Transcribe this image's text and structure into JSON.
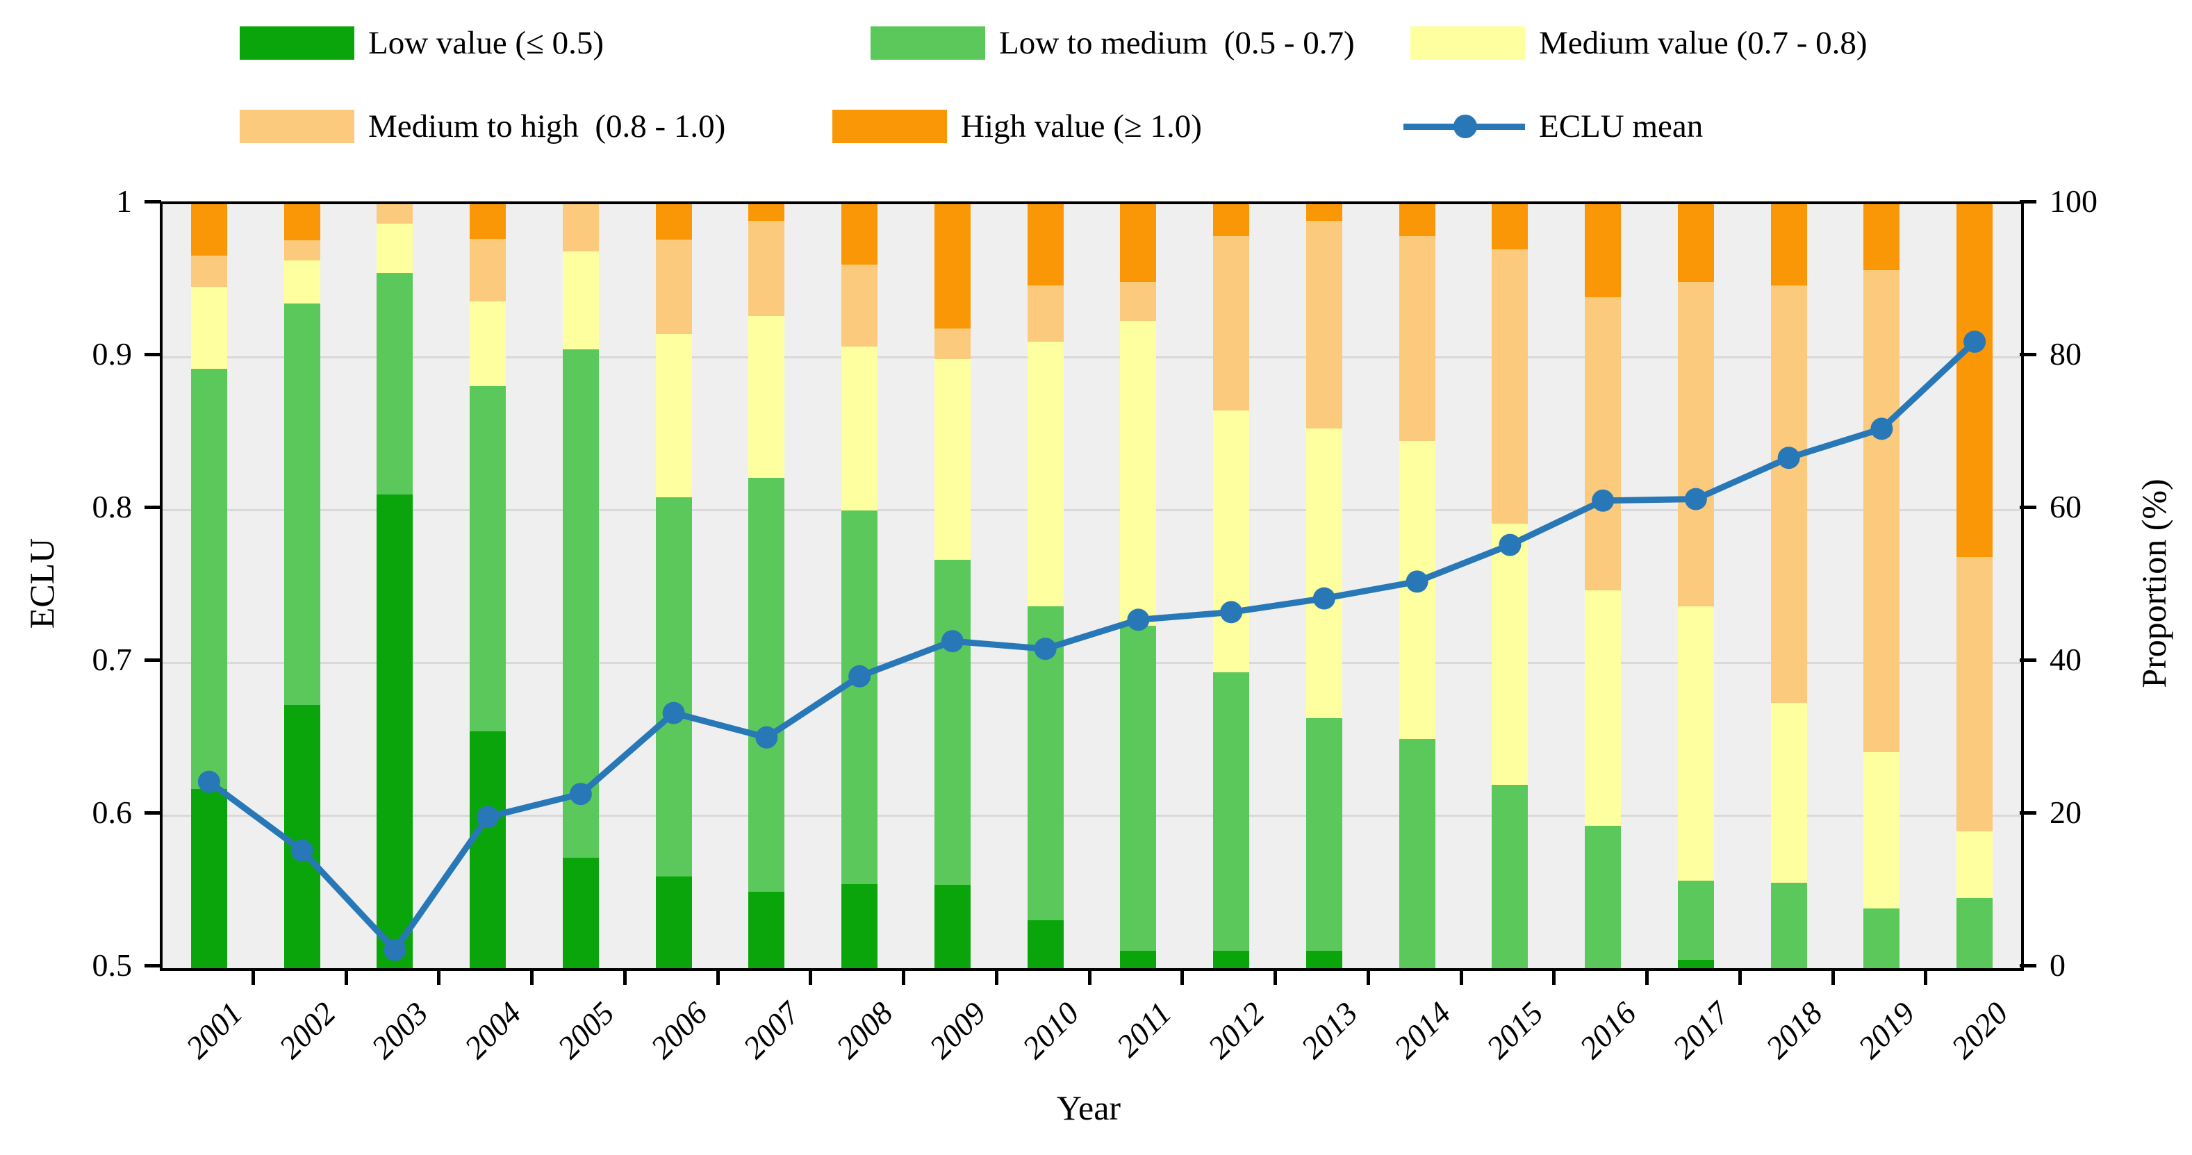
{
  "figure": {
    "legend": [
      {
        "label": "Low value (≤ 0.5)",
        "color": "#0aa50a",
        "type": "patch"
      },
      {
        "label": "Low to medium  (0.5 - 0.7)",
        "color": "#5bc85b",
        "type": "patch"
      },
      {
        "label": "Medium value (0.7 - 0.8)",
        "color": "#feff9e",
        "type": "patch"
      },
      {
        "label": "Medium to high  (0.8 - 1.0)",
        "color": "#fbca7d",
        "type": "patch"
      },
      {
        "label": "High value (≥ 1.0)",
        "color": "#fa9706",
        "type": "patch"
      },
      {
        "label": "ECLU mean",
        "color": "#2878b8",
        "type": "line"
      }
    ],
    "axes": {
      "left": {
        "label": "ECLU",
        "ticks": [
          "1",
          "0.9",
          "0.8",
          "0.7",
          "0.6",
          "0.5"
        ]
      },
      "right": {
        "label": "Proportion (%)",
        "ticks": [
          "100",
          "80",
          "60",
          "40",
          "20",
          "0"
        ]
      },
      "bottom": {
        "label": "Year"
      }
    },
    "colors": {
      "plot_background": "#efefef",
      "gridline": "#d9d9d9",
      "axis": "#000000",
      "line": "#2878b8"
    }
  },
  "chart_data": {
    "type": "bar",
    "subtype": "stacked-100pct-with-line",
    "categories": [
      "2001",
      "2002",
      "2003",
      "2004",
      "2005",
      "2006",
      "2007",
      "2008",
      "2009",
      "2010",
      "2011",
      "2012",
      "2013",
      "2014",
      "2015",
      "2016",
      "2017",
      "2018",
      "2019",
      "2020"
    ],
    "series": [
      {
        "name": "Low value (≤ 0.5)",
        "color": "#0aa50a",
        "values": [
          23.5,
          34.5,
          62.0,
          31.0,
          14.5,
          12.0,
          10.0,
          11.0,
          10.9,
          6.3,
          2.3,
          2.3,
          2.3,
          0.0,
          0.0,
          0.0,
          1.1,
          0.0,
          0.0,
          0.0
        ]
      },
      {
        "name": "Low to medium (0.5 - 0.7)",
        "color": "#5bc85b",
        "values": [
          55.0,
          52.5,
          29.0,
          45.2,
          66.5,
          49.6,
          54.2,
          48.9,
          42.6,
          41.1,
          42.5,
          36.4,
          30.4,
          30.0,
          24.0,
          18.6,
          10.4,
          11.2,
          7.8,
          9.2
        ]
      },
      {
        "name": "Medium value (0.7 - 0.8)",
        "color": "#feff9e",
        "values": [
          10.7,
          5.6,
          6.5,
          11.1,
          12.8,
          21.4,
          21.2,
          21.5,
          26.2,
          34.6,
          39.9,
          34.3,
          37.9,
          39.0,
          34.2,
          30.9,
          35.9,
          23.5,
          20.5,
          8.7
        ]
      },
      {
        "name": "Medium to high (0.8 - 1.0)",
        "color": "#fbca7d",
        "values": [
          4.1,
          2.7,
          2.5,
          8.2,
          6.2,
          12.4,
          12.4,
          10.7,
          4.0,
          7.4,
          5.1,
          22.8,
          27.2,
          26.8,
          35.9,
          38.3,
          42.4,
          54.7,
          63.1,
          35.9
        ]
      },
      {
        "name": "High value (≥ 1.0)",
        "color": "#fa9706",
        "values": [
          6.7,
          4.7,
          0.0,
          4.5,
          0.0,
          4.6,
          2.2,
          7.9,
          16.3,
          10.6,
          10.2,
          4.2,
          2.2,
          4.2,
          5.9,
          12.2,
          10.2,
          10.6,
          8.6,
          46.2
        ]
      }
    ],
    "line": {
      "name": "ECLU mean",
      "color": "#2878b8",
      "values": [
        0.622,
        0.577,
        0.512,
        0.599,
        0.614,
        0.667,
        0.651,
        0.691,
        0.714,
        0.709,
        0.728,
        0.733,
        0.742,
        0.753,
        0.777,
        0.806,
        0.807,
        0.834,
        0.853,
        0.91
      ]
    },
    "left_axis": {
      "label": "ECLU",
      "min": 0.5,
      "max": 1.0,
      "tick_step": 0.1
    },
    "right_axis": {
      "label": "Proportion (%)",
      "min": 0,
      "max": 100,
      "tick_step": 20
    },
    "xlabel": "Year",
    "title": "",
    "grid": true,
    "legend_position": "top"
  }
}
